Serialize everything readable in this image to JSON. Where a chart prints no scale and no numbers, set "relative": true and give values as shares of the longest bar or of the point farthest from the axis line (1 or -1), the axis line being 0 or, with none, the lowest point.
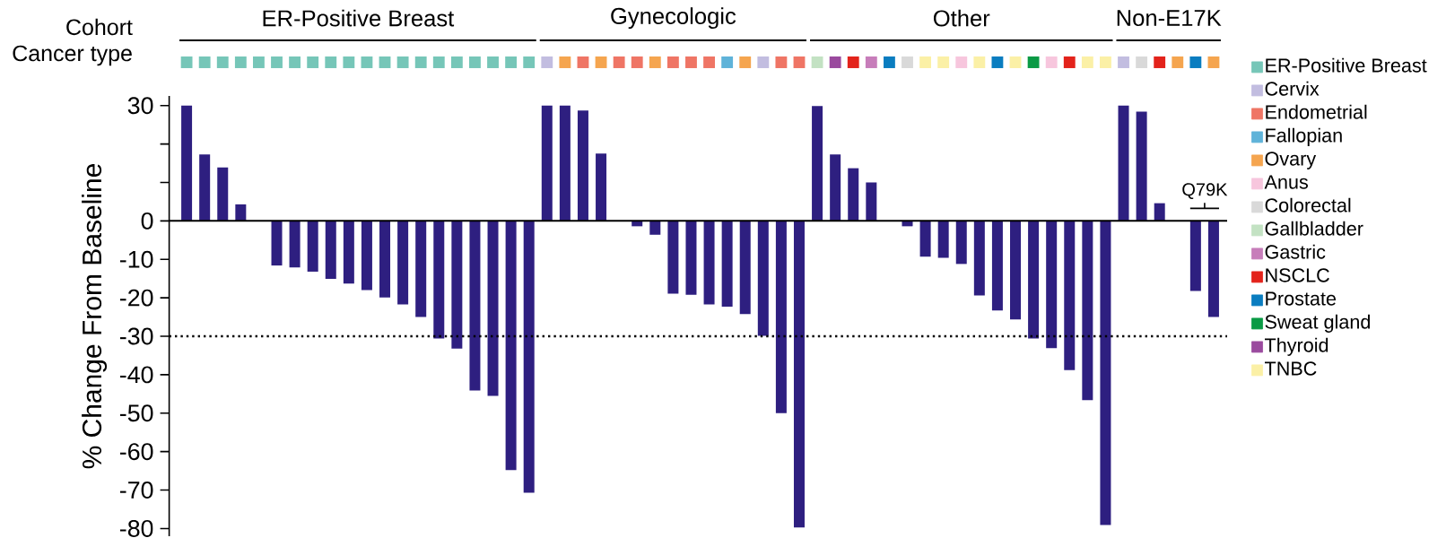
{
  "chart_data": [
    {
      "type": "bar",
      "relative": true,
      "stacked": true,
      "ylabel": "Cancer type",
      "annotations": [
        "Cohort",
        "ER-Positive Breast",
        "Gynecologic",
        "Other",
        "Non-E17K"
      ],
      "legend": "right",
      "categories": [
        null,
        null,
        null,
        null,
        null,
        null,
        null,
        null,
        null,
        null,
        null,
        null,
        null,
        null,
        null,
        null,
        null,
        null,
        null,
        null,
        null,
        null,
        null,
        null,
        null,
        null,
        null,
        null,
        null,
        null,
        null,
        null,
        null,
        null,
        null,
        null,
        null,
        null,
        null,
        null,
        null,
        null,
        null,
        null,
        null,
        null,
        null,
        null,
        null,
        null,
        null,
        null,
        null,
        null,
        null,
        null,
        null,
        null
      ],
      "series": [
        {
          "name": "ER-Positive Breast",
          "color": "#76c6b8",
          "values": [
            1,
            1,
            1,
            1,
            1,
            1,
            1,
            1,
            1,
            1,
            1,
            1,
            1,
            1,
            1,
            1,
            1,
            1,
            1,
            1,
            null,
            null,
            null,
            null,
            null,
            null,
            null,
            null,
            null,
            null,
            null,
            null,
            null,
            null,
            null,
            null,
            null,
            null,
            null,
            null,
            null,
            null,
            null,
            null,
            null,
            null,
            null,
            null,
            null,
            null,
            null,
            null,
            null,
            null,
            null,
            null,
            null,
            null
          ]
        },
        {
          "name": "Cervix",
          "color": "#c2bde0",
          "values": [
            null,
            null,
            null,
            null,
            null,
            null,
            null,
            null,
            null,
            null,
            null,
            null,
            null,
            null,
            null,
            null,
            null,
            null,
            null,
            null,
            1,
            null,
            null,
            null,
            null,
            null,
            null,
            null,
            null,
            null,
            null,
            null,
            1,
            null,
            null,
            null,
            null,
            null,
            null,
            null,
            null,
            null,
            null,
            null,
            null,
            null,
            null,
            null,
            null,
            null,
            null,
            null,
            1,
            null,
            null,
            null,
            null,
            null
          ]
        },
        {
          "name": "Endometrial",
          "color": "#ef7565",
          "values": [
            null,
            null,
            null,
            null,
            null,
            null,
            null,
            null,
            null,
            null,
            null,
            null,
            null,
            null,
            null,
            null,
            null,
            null,
            null,
            null,
            null,
            null,
            1,
            null,
            1,
            1,
            null,
            1,
            1,
            1,
            null,
            null,
            null,
            1,
            1,
            null,
            null,
            null,
            null,
            null,
            null,
            null,
            null,
            null,
            null,
            null,
            null,
            null,
            null,
            null,
            null,
            null,
            null,
            null,
            null,
            null,
            null,
            null
          ]
        },
        {
          "name": "Fallopian",
          "color": "#5fb3d9",
          "values": [
            null,
            null,
            null,
            null,
            null,
            null,
            null,
            null,
            null,
            null,
            null,
            null,
            null,
            null,
            null,
            null,
            null,
            null,
            null,
            null,
            null,
            null,
            null,
            null,
            null,
            null,
            null,
            null,
            null,
            null,
            1,
            null,
            null,
            null,
            null,
            null,
            null,
            null,
            null,
            null,
            null,
            null,
            null,
            null,
            null,
            null,
            null,
            null,
            null,
            null,
            null,
            null,
            null,
            null,
            null,
            null,
            null,
            null
          ]
        },
        {
          "name": "Ovary",
          "color": "#f5a54f",
          "values": [
            null,
            null,
            null,
            null,
            null,
            null,
            null,
            null,
            null,
            null,
            null,
            null,
            null,
            null,
            null,
            null,
            null,
            null,
            null,
            null,
            null,
            1,
            null,
            1,
            null,
            null,
            1,
            null,
            null,
            null,
            null,
            1,
            null,
            null,
            null,
            null,
            null,
            null,
            null,
            null,
            null,
            null,
            null,
            null,
            null,
            null,
            null,
            null,
            null,
            null,
            null,
            null,
            null,
            null,
            null,
            1,
            null,
            1
          ]
        },
        {
          "name": "Anus",
          "color": "#f7c6dd",
          "values": [
            null,
            null,
            null,
            null,
            null,
            null,
            null,
            null,
            null,
            null,
            null,
            null,
            null,
            null,
            null,
            null,
            null,
            null,
            null,
            null,
            null,
            null,
            null,
            null,
            null,
            null,
            null,
            null,
            null,
            null,
            null,
            null,
            null,
            null,
            null,
            null,
            null,
            null,
            null,
            null,
            null,
            null,
            null,
            1,
            null,
            null,
            null,
            null,
            1,
            null,
            null,
            null,
            null,
            null,
            null,
            null,
            null,
            null
          ]
        },
        {
          "name": "Colorectal",
          "color": "#d9d9d9",
          "values": [
            null,
            null,
            null,
            null,
            null,
            null,
            null,
            null,
            null,
            null,
            null,
            null,
            null,
            null,
            null,
            null,
            null,
            null,
            null,
            null,
            null,
            null,
            null,
            null,
            null,
            null,
            null,
            null,
            null,
            null,
            null,
            null,
            null,
            null,
            null,
            null,
            null,
            null,
            null,
            null,
            1,
            null,
            null,
            null,
            null,
            null,
            null,
            null,
            null,
            null,
            null,
            null,
            null,
            1,
            null,
            null,
            null,
            null
          ]
        },
        {
          "name": "Gallbladder",
          "color": "#c3e2c3",
          "values": [
            null,
            null,
            null,
            null,
            null,
            null,
            null,
            null,
            null,
            null,
            null,
            null,
            null,
            null,
            null,
            null,
            null,
            null,
            null,
            null,
            null,
            null,
            null,
            null,
            null,
            null,
            null,
            null,
            null,
            null,
            null,
            null,
            null,
            null,
            null,
            1,
            null,
            null,
            null,
            null,
            null,
            null,
            null,
            null,
            null,
            null,
            null,
            null,
            null,
            null,
            null,
            null,
            null,
            null,
            null,
            null,
            null,
            null
          ]
        },
        {
          "name": "Gastric",
          "color": "#c77dba",
          "values": [
            null,
            null,
            null,
            null,
            null,
            null,
            null,
            null,
            null,
            null,
            null,
            null,
            null,
            null,
            null,
            null,
            null,
            null,
            null,
            null,
            null,
            null,
            null,
            null,
            null,
            null,
            null,
            null,
            null,
            null,
            null,
            null,
            null,
            null,
            null,
            null,
            null,
            null,
            1,
            null,
            null,
            null,
            null,
            null,
            null,
            null,
            null,
            null,
            null,
            null,
            null,
            null,
            null,
            null,
            null,
            null,
            null,
            null
          ]
        },
        {
          "name": "NSCLC",
          "color": "#e3231b",
          "values": [
            null,
            null,
            null,
            null,
            null,
            null,
            null,
            null,
            null,
            null,
            null,
            null,
            null,
            null,
            null,
            null,
            null,
            null,
            null,
            null,
            null,
            null,
            null,
            null,
            null,
            null,
            null,
            null,
            null,
            null,
            null,
            null,
            null,
            null,
            null,
            null,
            null,
            1,
            null,
            null,
            null,
            null,
            null,
            null,
            null,
            null,
            null,
            null,
            null,
            1,
            null,
            null,
            null,
            null,
            1,
            null,
            null,
            null
          ]
        },
        {
          "name": "Prostate",
          "color": "#0a7dc0",
          "values": [
            null,
            null,
            null,
            null,
            null,
            null,
            null,
            null,
            null,
            null,
            null,
            null,
            null,
            null,
            null,
            null,
            null,
            null,
            null,
            null,
            null,
            null,
            null,
            null,
            null,
            null,
            null,
            null,
            null,
            null,
            null,
            null,
            null,
            null,
            null,
            null,
            null,
            null,
            null,
            1,
            null,
            null,
            null,
            null,
            null,
            1,
            null,
            null,
            null,
            null,
            null,
            null,
            null,
            null,
            null,
            null,
            1,
            null
          ]
        },
        {
          "name": "Sweat gland",
          "color": "#0a9a45",
          "values": [
            null,
            null,
            null,
            null,
            null,
            null,
            null,
            null,
            null,
            null,
            null,
            null,
            null,
            null,
            null,
            null,
            null,
            null,
            null,
            null,
            null,
            null,
            null,
            null,
            null,
            null,
            null,
            null,
            null,
            null,
            null,
            null,
            null,
            null,
            null,
            null,
            null,
            null,
            null,
            null,
            null,
            null,
            null,
            null,
            null,
            null,
            null,
            1,
            null,
            null,
            null,
            null,
            null,
            null,
            null,
            null,
            null,
            null
          ]
        },
        {
          "name": "Thyroid",
          "color": "#9a4a9e",
          "values": [
            null,
            null,
            null,
            null,
            null,
            null,
            null,
            null,
            null,
            null,
            null,
            null,
            null,
            null,
            null,
            null,
            null,
            null,
            null,
            null,
            null,
            null,
            null,
            null,
            null,
            null,
            null,
            null,
            null,
            null,
            null,
            null,
            null,
            null,
            null,
            null,
            1,
            null,
            null,
            null,
            null,
            null,
            null,
            null,
            null,
            null,
            null,
            null,
            null,
            null,
            null,
            null,
            null,
            null,
            null,
            null,
            null,
            null
          ]
        },
        {
          "name": "TNBC",
          "color": "#fbf0a6",
          "values": [
            null,
            null,
            null,
            null,
            null,
            null,
            null,
            null,
            null,
            null,
            null,
            null,
            null,
            null,
            null,
            null,
            null,
            null,
            null,
            null,
            null,
            null,
            null,
            null,
            null,
            null,
            null,
            null,
            null,
            null,
            null,
            null,
            null,
            null,
            null,
            null,
            null,
            null,
            null,
            null,
            null,
            1,
            1,
            null,
            1,
            null,
            1,
            null,
            null,
            null,
            1,
            1,
            null,
            null,
            null,
            null,
            null,
            null
          ]
        }
      ]
    },
    {
      "type": "bar",
      "ylabel": "% Change From Baseline",
      "color": "#2e1f80",
      "categories": [
        null,
        null,
        null,
        null,
        null,
        null,
        null,
        null,
        null,
        null,
        null,
        null,
        null,
        null,
        null,
        null,
        null,
        null,
        null,
        null,
        null,
        null,
        null,
        null,
        null,
        null,
        null,
        null,
        null,
        null,
        null,
        null,
        null,
        null,
        null,
        null,
        null,
        null,
        null,
        null,
        null,
        null,
        null,
        null,
        null,
        null,
        null,
        null,
        null,
        null,
        null,
        null,
        null,
        null,
        null,
        null,
        null,
        null
      ],
      "values": [
        30,
        17.3,
        13.9,
        4.3,
        0,
        -11.6,
        -12.1,
        -13.2,
        -15.1,
        -16.3,
        -18.0,
        -19.9,
        -21.7,
        -25.0,
        -30.6,
        -33.2,
        -44.1,
        -45.5,
        -64.8,
        -70.7,
        30,
        30,
        28.7,
        17.5,
        0,
        -1.4,
        -3.6,
        -18.9,
        -19.2,
        -21.7,
        -22.3,
        -24.2,
        -29.9,
        -50.0,
        -79.7,
        29.9,
        17.3,
        13.7,
        10.0,
        0,
        -1.4,
        -9.3,
        -9.6,
        -11.2,
        -19.4,
        -23.3,
        -25.6,
        -30.6,
        -33.1,
        -38.8,
        -46.6,
        -79.1,
        30,
        28.4,
        4.6,
        0,
        -18.2,
        -25.0
      ],
      "ylim": [
        -82,
        32.5
      ],
      "yticks": [
        -80,
        -70,
        -60,
        -50,
        -40,
        -30,
        -20,
        -10,
        0,
        {
          "value": 10,
          "label": null
        },
        {
          "value": 20,
          "label": null
        },
        30
      ],
      "ref_lines": [
        {
          "axis": "y",
          "value": -30,
          "color": "#000000",
          "line_style": "dotted"
        }
      ],
      "annotations": [
        "Q79K"
      ]
    }
  ]
}
